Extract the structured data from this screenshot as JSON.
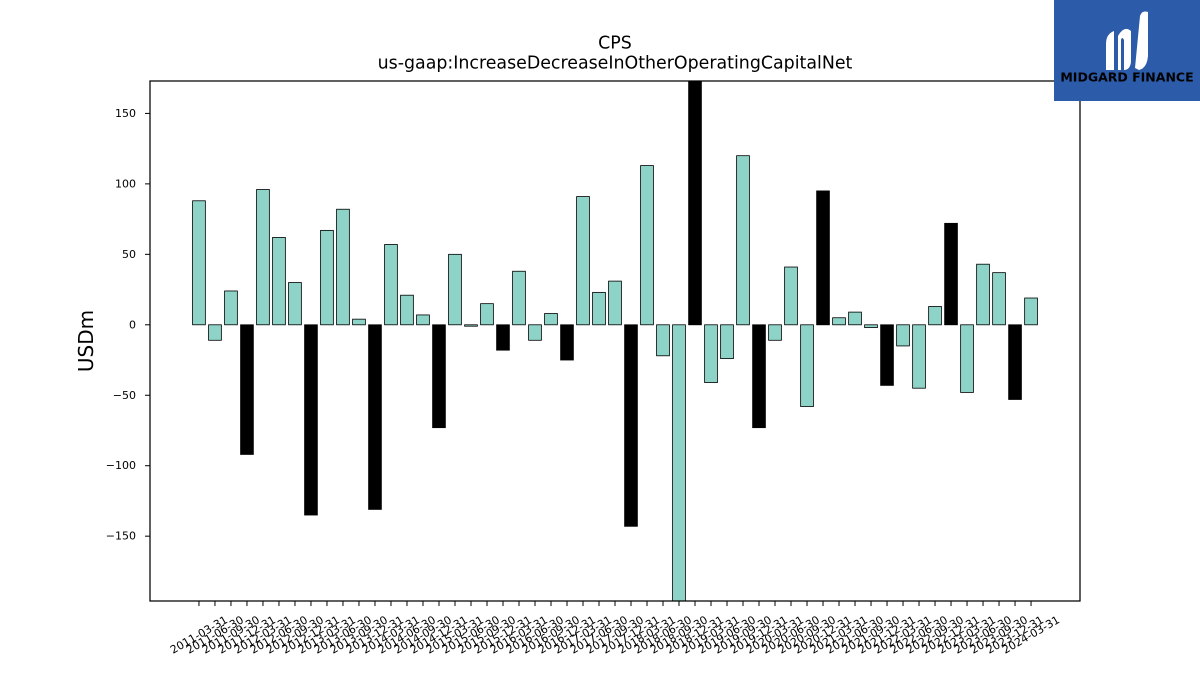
{
  "logo": {
    "text": "MIDGARD FINANCE",
    "icon": "midgard-logo-icon",
    "background": "#2b5ba9",
    "foreground": "#ffffff"
  },
  "chart_data": {
    "type": "bar",
    "title": "CPS",
    "subtitle": "us-gaap:IncreaseDecreaseInOtherOperatingCapitalNet",
    "ylabel": "USDm",
    "ylim": [
      -196,
      173
    ],
    "yticks": [
      -150,
      -100,
      -50,
      0,
      50,
      100,
      150
    ],
    "ytick_labels": [
      "−150",
      "−100",
      "−50",
      "0",
      "50",
      "100",
      "150"
    ],
    "grid": false,
    "bar_edge_color": "#000000",
    "categories": [
      "2011-03-31",
      "2011-06-30",
      "2011-09-30",
      "2011-12-31",
      "2012-03-31",
      "2012-06-30",
      "2012-09-30",
      "2012-12-31",
      "2013-03-31",
      "2013-06-30",
      "2013-09-30",
      "2013-12-31",
      "2014-03-31",
      "2014-06-30",
      "2014-09-30",
      "2014-12-31",
      "2015-03-31",
      "2015-06-30",
      "2015-09-30",
      "2015-12-31",
      "2016-03-31",
      "2016-06-30",
      "2016-09-30",
      "2016-12-31",
      "2017-03-31",
      "2017-06-30",
      "2017-09-30",
      "2017-12-31",
      "2018-03-31",
      "2018-06-30",
      "2018-09-30",
      "2018-12-31",
      "2019-03-31",
      "2019-06-30",
      "2019-09-30",
      "2019-12-31",
      "2020-03-31",
      "2020-06-30",
      "2020-09-30",
      "2020-12-31",
      "2021-03-31",
      "2021-06-30",
      "2021-09-30",
      "2021-12-31",
      "2022-03-31",
      "2022-06-30",
      "2022-09-30",
      "2022-12-31",
      "2023-03-31",
      "2023-06-30",
      "2023-09-30",
      "2023-12-31",
      "2024-03-31"
    ],
    "values": [
      88,
      -11,
      24,
      -92,
      96,
      62,
      30,
      -135,
      67,
      82,
      4,
      -131,
      57,
      21,
      7,
      -73,
      50,
      -1,
      15,
      -18,
      38,
      -11,
      8,
      -25,
      91,
      23,
      31,
      -143,
      113,
      -22,
      -210,
      185,
      -41,
      -24,
      120,
      -73,
      -11,
      41,
      -58,
      95,
      5,
      9,
      -2,
      -43,
      -15,
      -45,
      13,
      72,
      -48,
      43,
      37,
      -53,
      19
    ],
    "bar_colors": [
      "#8dd3c7",
      "#8dd3c7",
      "#8dd3c7",
      "#000000",
      "#8dd3c7",
      "#8dd3c7",
      "#8dd3c7",
      "#000000",
      "#8dd3c7",
      "#8dd3c7",
      "#8dd3c7",
      "#000000",
      "#8dd3c7",
      "#8dd3c7",
      "#8dd3c7",
      "#000000",
      "#8dd3c7",
      "#8dd3c7",
      "#8dd3c7",
      "#000000",
      "#8dd3c7",
      "#8dd3c7",
      "#8dd3c7",
      "#000000",
      "#8dd3c7",
      "#8dd3c7",
      "#8dd3c7",
      "#000000",
      "#8dd3c7",
      "#8dd3c7",
      "#8dd3c7",
      "#000000",
      "#8dd3c7",
      "#8dd3c7",
      "#8dd3c7",
      "#000000",
      "#8dd3c7",
      "#8dd3c7",
      "#8dd3c7",
      "#000000",
      "#8dd3c7",
      "#8dd3c7",
      "#8dd3c7",
      "#000000",
      "#8dd3c7",
      "#8dd3c7",
      "#8dd3c7",
      "#000000",
      "#8dd3c7",
      "#8dd3c7",
      "#8dd3c7",
      "#000000",
      "#8dd3c7"
    ]
  }
}
